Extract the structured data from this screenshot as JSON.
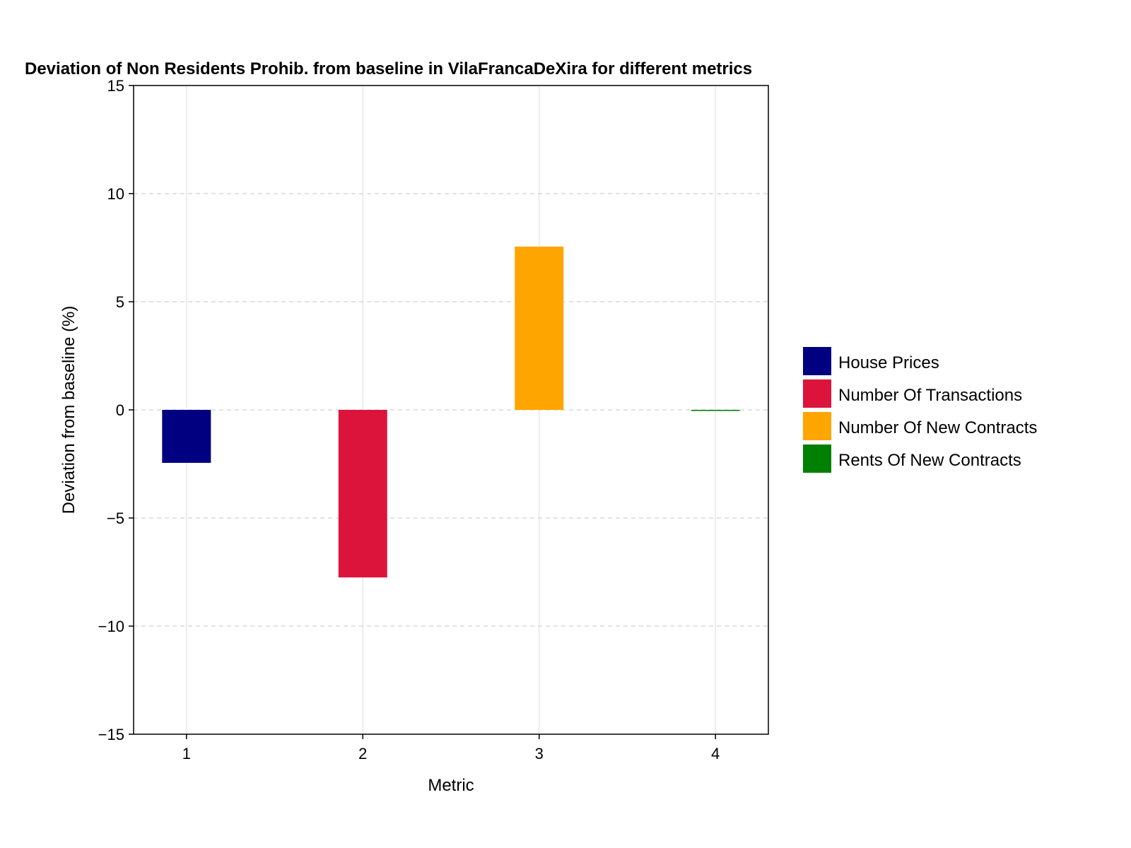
{
  "chart_data": {
    "type": "bar",
    "title": "Deviation of Non Residents Prohib. from baseline in VilaFrancaDeXira for different metrics",
    "xlabel": "Metric",
    "ylabel": "Deviation from baseline (%)",
    "categories": [
      "1",
      "2",
      "3",
      "4"
    ],
    "series": [
      {
        "name": "House Prices",
        "x": 1,
        "value": -2.45,
        "color": "#000080"
      },
      {
        "name": "Number Of Transactions",
        "x": 2,
        "value": -7.75,
        "color": "#dc143c"
      },
      {
        "name": "Number Of New Contracts",
        "x": 3,
        "value": 7.55,
        "color": "#ffa500"
      },
      {
        "name": "Rents Of New Contracts",
        "x": 4,
        "value": -0.05,
        "color": "#008000"
      }
    ],
    "ylim": [
      -15,
      15
    ],
    "yticks": [
      -15,
      -10,
      -5,
      0,
      5,
      10,
      15
    ],
    "ytick_labels": [
      "−15",
      "−10",
      "−5",
      "0",
      "5",
      "10",
      "15"
    ],
    "xticks": [
      1,
      2,
      3,
      4
    ],
    "xlim": [
      0.7,
      4.3
    ],
    "grid": true,
    "legend_position": "right"
  }
}
